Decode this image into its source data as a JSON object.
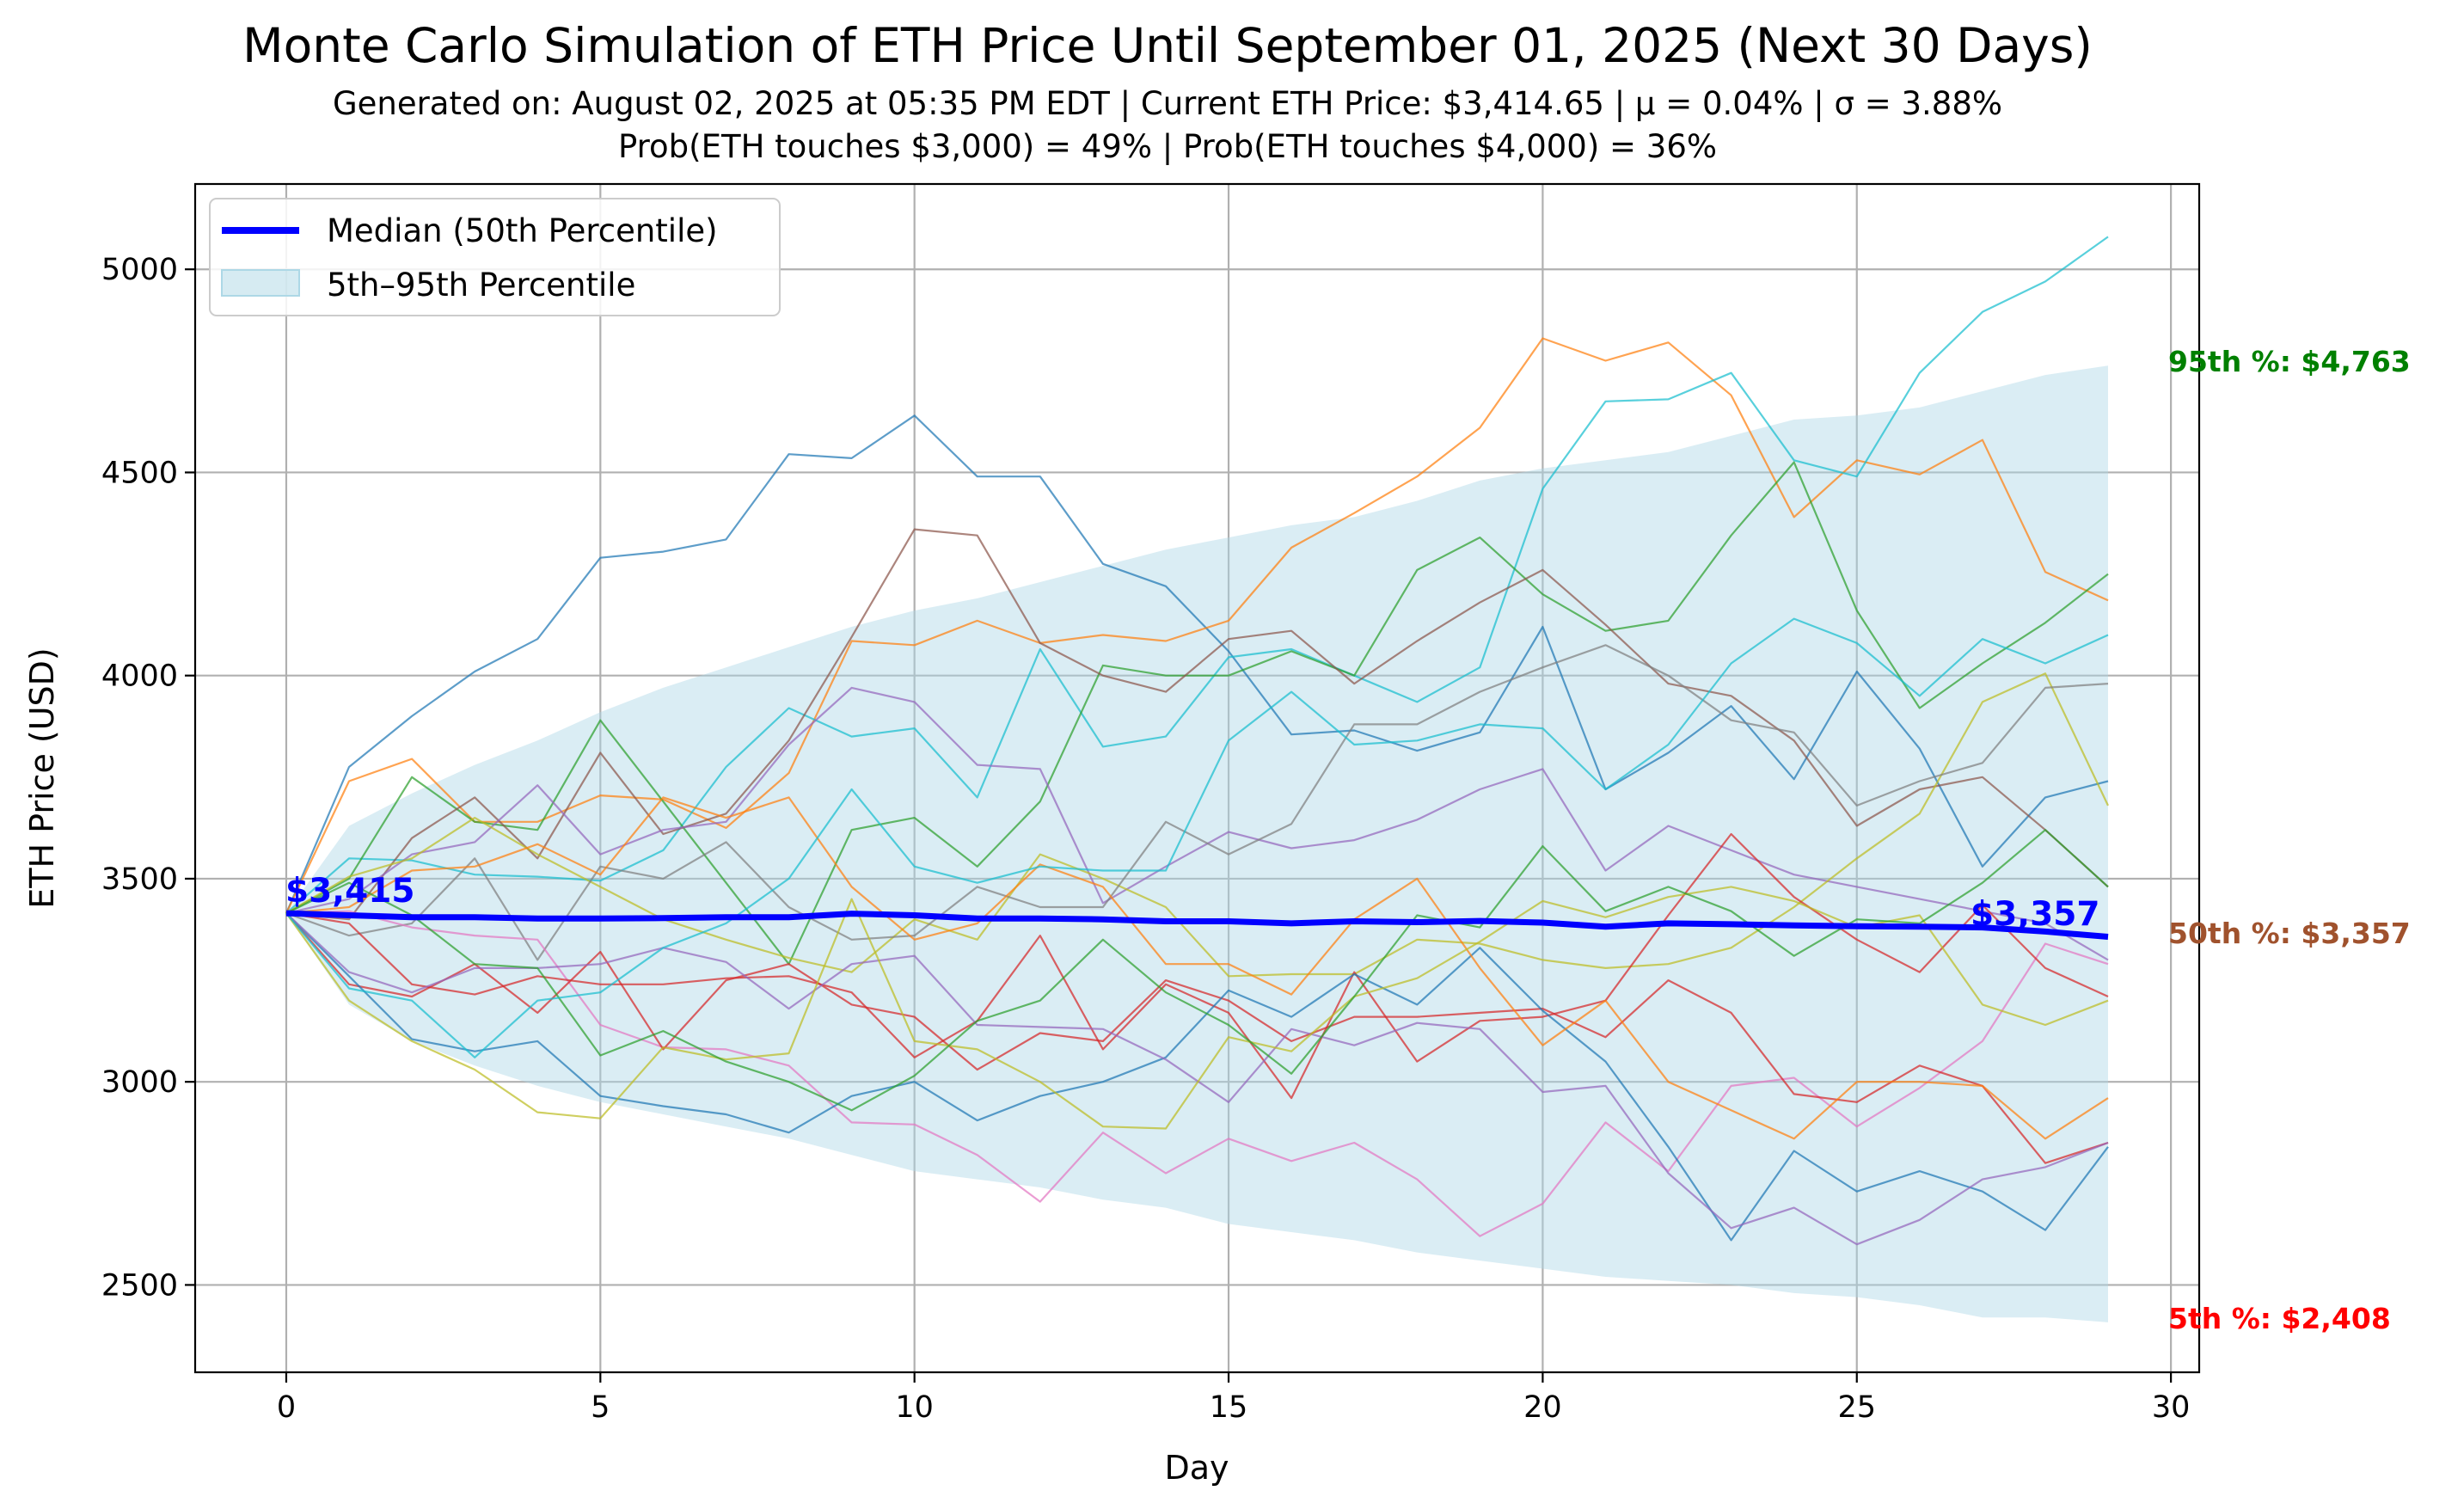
{
  "chart_data": {
    "type": "line",
    "title": "Monte Carlo Simulation of ETH Price Until September 01, 2025 (Next 30 Days)",
    "subtitle_lines": [
      "Generated on: August 02, 2025 at 05:35 PM EDT | Current ETH Price: $3,414.65 | μ = 0.04% | σ = 3.88%",
      "Prob(ETH touches $3,000) = 49% | Prob(ETH touches $4,000) = 36%"
    ],
    "xlabel": "Day",
    "ylabel": "ETH Price (USD)",
    "xlim": [
      -1.45,
      30.45
    ],
    "ylim": [
      2285,
      5210
    ],
    "xticks": [
      0,
      5,
      10,
      15,
      20,
      25,
      30
    ],
    "yticks": [
      2500,
      3000,
      3500,
      4000,
      4500,
      5000
    ],
    "grid": true,
    "legend": {
      "placement": "top-left",
      "entries": [
        "Median (50th Percentile)",
        "5th–95th Percentile"
      ]
    },
    "x": [
      0,
      1,
      2,
      3,
      4,
      5,
      6,
      7,
      8,
      9,
      10,
      11,
      12,
      13,
      14,
      15,
      16,
      17,
      18,
      19,
      20,
      21,
      22,
      23,
      24,
      25,
      26,
      27,
      28,
      29
    ],
    "median": {
      "name": "Median (50th Percentile)",
      "color": "#0000ff",
      "values": [
        3415,
        3410,
        3405,
        3405,
        3402,
        3402,
        3403,
        3405,
        3405,
        3414,
        3410,
        3402,
        3402,
        3400,
        3395,
        3395,
        3390,
        3395,
        3393,
        3396,
        3392,
        3382,
        3390,
        3388,
        3385,
        3383,
        3382,
        3380,
        3370,
        3357
      ]
    },
    "band": {
      "name": "5th–95th Percentile",
      "color": "#add8e6",
      "upper": [
        3415,
        3630,
        3710,
        3780,
        3840,
        3910,
        3970,
        4020,
        4070,
        4120,
        4160,
        4190,
        4230,
        4270,
        4310,
        4340,
        4370,
        4390,
        4430,
        4480,
        4510,
        4530,
        4550,
        4590,
        4630,
        4640,
        4660,
        4700,
        4740,
        4763
      ],
      "lower": [
        3415,
        3190,
        3100,
        3040,
        2990,
        2950,
        2920,
        2890,
        2860,
        2820,
        2780,
        2760,
        2740,
        2710,
        2690,
        2650,
        2630,
        2610,
        2580,
        2560,
        2540,
        2520,
        2510,
        2500,
        2480,
        2470,
        2450,
        2420,
        2420,
        2408
      ]
    },
    "simulations": [
      {
        "color": "#1f77b4",
        "values": [
          3415,
          3775,
          3900,
          4010,
          4090,
          4290,
          4305,
          4335,
          4545,
          4535,
          4640,
          4490,
          4490,
          4275,
          4220,
          4060,
          3855,
          3865,
          3815,
          3860,
          4120,
          3720,
          3810,
          3925,
          3745,
          4010,
          3820,
          3530,
          3700,
          3740
        ]
      },
      {
        "color": "#ff7f0e",
        "values": [
          3415,
          3740,
          3795,
          3640,
          3640,
          3705,
          3695,
          3625,
          3760,
          4085,
          4075,
          4135,
          4080,
          4100,
          4085,
          4135,
          4315,
          4400,
          4490,
          4610,
          4830,
          4775,
          4820,
          4690,
          4390,
          4530,
          4495,
          4580,
          4255,
          4185
        ]
      },
      {
        "color": "#17becf",
        "values": [
          3415,
          3550,
          3545,
          3510,
          3505,
          3495,
          3570,
          3775,
          3920,
          3850,
          3870,
          3700,
          4065,
          3825,
          3850,
          4045,
          4065,
          4000,
          3935,
          4020,
          4460,
          4675,
          4680,
          4745,
          4530,
          4490,
          4745,
          4895,
          4970,
          5080
        ]
      },
      {
        "color": "#2ca02c",
        "values": [
          3415,
          3500,
          3750,
          3640,
          3620,
          3890,
          3690,
          3490,
          3290,
          3620,
          3650,
          3530,
          3690,
          4025,
          4000,
          4000,
          4060,
          4000,
          4260,
          4340,
          4200,
          4110,
          4135,
          4345,
          4525,
          4160,
          3920,
          4030,
          4130,
          4250
        ]
      },
      {
        "color": "#8c564b",
        "values": [
          3415,
          3400,
          3600,
          3700,
          3550,
          3810,
          3610,
          3660,
          3840,
          4095,
          4360,
          4345,
          4080,
          4000,
          3960,
          4090,
          4110,
          3980,
          4085,
          4180,
          4260,
          4125,
          3980,
          3950,
          3840,
          3630,
          3720,
          3750,
          3620,
          3480
        ]
      },
      {
        "color": "#9467bd",
        "values": [
          3415,
          3450,
          3560,
          3590,
          3730,
          3560,
          3620,
          3640,
          3830,
          3970,
          3935,
          3780,
          3770,
          3440,
          3530,
          3615,
          3575,
          3595,
          3645,
          3720,
          3770,
          3520,
          3630,
          3570,
          3510,
          3480,
          3450,
          3420,
          3390,
          3300
        ]
      },
      {
        "color": "#bcbd22",
        "values": [
          3415,
          3505,
          3550,
          3650,
          3560,
          3480,
          3400,
          3350,
          3305,
          3270,
          3400,
          3350,
          3560,
          3500,
          3430,
          3260,
          3265,
          3265,
          3350,
          3340,
          3300,
          3280,
          3290,
          3330,
          3430,
          3550,
          3660,
          3935,
          4005,
          3680
        ]
      },
      {
        "color": "#7f7f7f",
        "values": [
          3415,
          3360,
          3390,
          3550,
          3300,
          3530,
          3500,
          3590,
          3430,
          3350,
          3360,
          3480,
          3430,
          3430,
          3640,
          3560,
          3635,
          3880,
          3880,
          3960,
          4020,
          4075,
          4000,
          3890,
          3860,
          3680,
          3740,
          3785,
          3970,
          3980
        ]
      },
      {
        "color": "#e377c2",
        "values": [
          3415,
          3420,
          3380,
          3360,
          3350,
          3140,
          3085,
          3080,
          3040,
          2900,
          2895,
          2820,
          2705,
          2875,
          2775,
          2860,
          2805,
          2850,
          2760,
          2620,
          2700,
          2900,
          2780,
          2990,
          3010,
          2890,
          2985,
          3100,
          3340,
          3290
        ]
      },
      {
        "color": "#d62728",
        "values": [
          3415,
          3240,
          3210,
          3290,
          3170,
          3320,
          3080,
          3250,
          3290,
          3190,
          3160,
          3030,
          3120,
          3100,
          3250,
          3200,
          3100,
          3160,
          3160,
          3170,
          3180,
          3110,
          3250,
          3170,
          2970,
          2950,
          3040,
          2990,
          2800,
          2850
        ]
      },
      {
        "color": "#d62728",
        "values": [
          3415,
          3390,
          3240,
          3215,
          3260,
          3240,
          3240,
          3255,
          3260,
          3220,
          3060,
          3150,
          3360,
          3080,
          3240,
          3170,
          2960,
          3270,
          3050,
          3150,
          3160,
          3200,
          3410,
          3610,
          3455,
          3350,
          3270,
          3435,
          3280,
          3210
        ]
      },
      {
        "color": "#1f77b4",
        "values": [
          3415,
          3260,
          3105,
          3075,
          3100,
          2965,
          2940,
          2920,
          2875,
          2965,
          3000,
          2905,
          2965,
          3000,
          3060,
          3225,
          3160,
          3265,
          3190,
          3330,
          3175,
          3050,
          2840,
          2610,
          2830,
          2730,
          2780,
          2730,
          2635,
          2840
        ]
      },
      {
        "color": "#9467bd",
        "values": [
          3415,
          3270,
          3220,
          3280,
          3280,
          3290,
          3330,
          3295,
          3180,
          3290,
          3310,
          3140,
          3135,
          3130,
          3055,
          2950,
          3130,
          3090,
          3145,
          3130,
          2975,
          2990,
          2775,
          2640,
          2690,
          2600,
          2660,
          2760,
          2790,
          2850
        ]
      },
      {
        "color": "#ff7f0e",
        "values": [
          3415,
          3430,
          3520,
          3530,
          3585,
          3510,
          3700,
          3650,
          3700,
          3480,
          3350,
          3390,
          3535,
          3480,
          3290,
          3290,
          3215,
          3400,
          3500,
          3280,
          3090,
          3200,
          3000,
          2930,
          2860,
          3000,
          3000,
          2990,
          2860,
          2960
        ]
      },
      {
        "color": "#bcbd22",
        "values": [
          3415,
          3200,
          3100,
          3030,
          2925,
          2910,
          3085,
          3055,
          3070,
          3450,
          3100,
          3080,
          3000,
          2890,
          2885,
          3110,
          3075,
          3210,
          3255,
          3345,
          3445,
          3405,
          3455,
          3480,
          3445,
          3380,
          3410,
          3190,
          3140,
          3200
        ]
      },
      {
        "color": "#2ca02c",
        "values": [
          3415,
          3490,
          3410,
          3290,
          3280,
          3065,
          3125,
          3050,
          3000,
          2930,
          3015,
          3150,
          3200,
          3350,
          3220,
          3140,
          3020,
          3210,
          3410,
          3380,
          3580,
          3420,
          3480,
          3420,
          3310,
          3400,
          3390,
          3490,
          3620,
          3480
        ]
      },
      {
        "color": "#17becf",
        "values": [
          3415,
          3230,
          3200,
          3060,
          3200,
          3220,
          3330,
          3390,
          3500,
          3720,
          3530,
          3490,
          3530,
          3520,
          3520,
          3840,
          3960,
          3830,
          3840,
          3880,
          3870,
          3720,
          3830,
          4030,
          4140,
          4080,
          3950,
          4090,
          4030,
          4100
        ]
      }
    ],
    "annotations": {
      "start_label": "$3,415",
      "end_label": "$3,357",
      "p95_label": "95th %: $4,763",
      "p50_label": "50th %: $3,357",
      "p5_label": "5th %: $2,408"
    },
    "colors": {
      "p95": "#008000",
      "p50": "#a0522d",
      "p5": "#ff0000",
      "median": "#0000ff",
      "band": "#add8e6",
      "grid": "#b0b0b0"
    }
  }
}
